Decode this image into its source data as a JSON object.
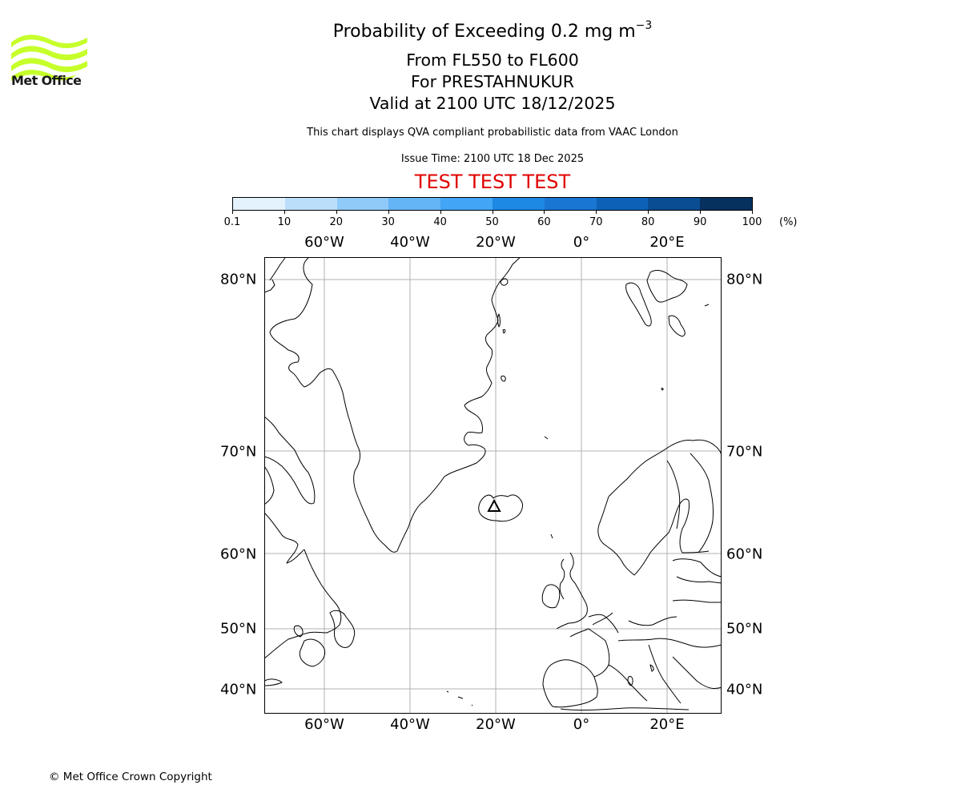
{
  "logo": {
    "name": "Met Office",
    "icon": "met-office-wave-logo",
    "color": "#c6ff2a"
  },
  "header": {
    "title_prefix": "Probability of Exceeding 0.2 mg m",
    "title_superscript": "−3",
    "level_range": "From FL550 to FL600",
    "volcano": "For PRESTAHNUKUR",
    "valid_time": "Valid at 2100 UTC 18/12/2025",
    "description": "This chart displays QVA compliant probabilistic data from VAAC London",
    "issue_time": "Issue Time: 2100 UTC 18 Dec 2025",
    "test_banner": "TEST TEST TEST",
    "test_color": "#e00000"
  },
  "colorbar": {
    "unit": "(%)",
    "ticks": [
      "0.1",
      "10",
      "20",
      "30",
      "40",
      "50",
      "60",
      "70",
      "80",
      "90",
      "100"
    ],
    "colors": [
      "#e3f2fd",
      "#bbdefb",
      "#90caf9",
      "#64b5f6",
      "#42a5f5",
      "#1e88e5",
      "#1976d2",
      "#0d62b8",
      "#0a4d92",
      "#06305e"
    ]
  },
  "map": {
    "lon_labels": [
      "60°W",
      "40°W",
      "20°W",
      "0°",
      "20°E"
    ],
    "lat_labels": [
      "80°N",
      "70°N",
      "60°N",
      "50°N",
      "40°N"
    ],
    "volcano_marker": "volcano-triangle-icon",
    "gridline_color": "#b0b0b0"
  },
  "chart_data": {
    "type": "heatmap",
    "title": "Probability of Exceeding 0.2 mg m-3",
    "subtitle": [
      "From FL550 to FL600",
      "For PRESTAHNUKUR",
      "Valid at 2100 UTC 18/12/2025"
    ],
    "colorbar_label": "(%)",
    "colorbar_bins": [
      0.1,
      10,
      20,
      30,
      40,
      50,
      60,
      70,
      80,
      90,
      100
    ],
    "xlabel_ticks": [
      "60°W",
      "40°W",
      "20°W",
      "0°",
      "20°E"
    ],
    "ylabel_ticks": [
      "80°N",
      "70°N",
      "60°N",
      "50°N",
      "40°N"
    ],
    "lon_range": [
      -74,
      33
    ],
    "lat_range": [
      37,
      82
    ],
    "grid": true,
    "shaded_regions": [],
    "markers": [
      {
        "label": "PRESTAHNUKUR",
        "type": "triangle",
        "lon": -20.6,
        "lat": 64.6
      }
    ]
  },
  "footer": {
    "copyright": "© Met Office Crown Copyright"
  }
}
